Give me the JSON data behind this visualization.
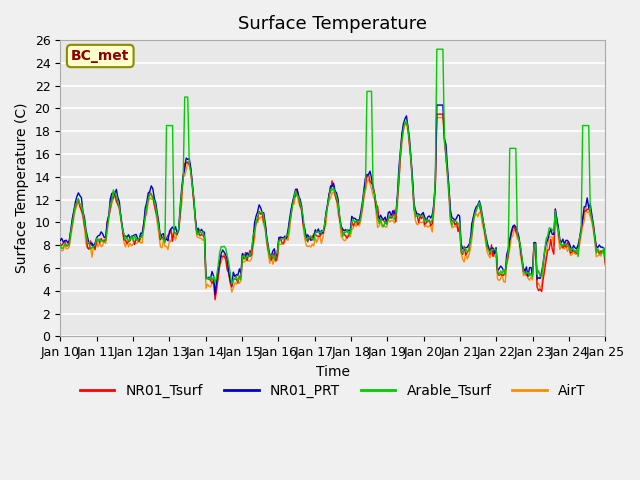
{
  "title": "Surface Temperature",
  "xlabel": "Time",
  "ylabel": "Surface Temperature (C)",
  "ylim": [
    0,
    26
  ],
  "yticks": [
    0,
    2,
    4,
    6,
    8,
    10,
    12,
    14,
    16,
    18,
    20,
    22,
    24,
    26
  ],
  "annotation_text": "BC_met",
  "annotation_color": "#8B0000",
  "annotation_bg": "#FFFFCC",
  "annotation_border": "#8B8B00",
  "series_colors": {
    "NR01_Tsurf": "#FF0000",
    "NR01_PRT": "#0000CC",
    "Arable_Tsurf": "#00CC00",
    "AirT": "#FF8C00"
  },
  "xtick_labels": [
    "Jan 10",
    "Jan 11",
    "Jan 12",
    "Jan 13",
    "Jan 14",
    "Jan 15",
    "Jan 16",
    "Jan 17",
    "Jan 18",
    "Jan 19",
    "Jan 20",
    "Jan 21",
    "Jan 22",
    "Jan 23",
    "Jan 24",
    "Jan 25"
  ],
  "xtick_positions": [
    0,
    1,
    2,
    3,
    4,
    5,
    6,
    7,
    8,
    9,
    10,
    11,
    12,
    13,
    14,
    15
  ],
  "x_start": 0,
  "x_end": 15,
  "n_points": 360,
  "plot_bg": "#E8E8E8",
  "fig_bg": "#F0F0F0",
  "grid_color": "#FFFFFF",
  "title_fontsize": 13,
  "axis_label_fontsize": 10,
  "tick_fontsize": 9,
  "legend_fontsize": 10
}
